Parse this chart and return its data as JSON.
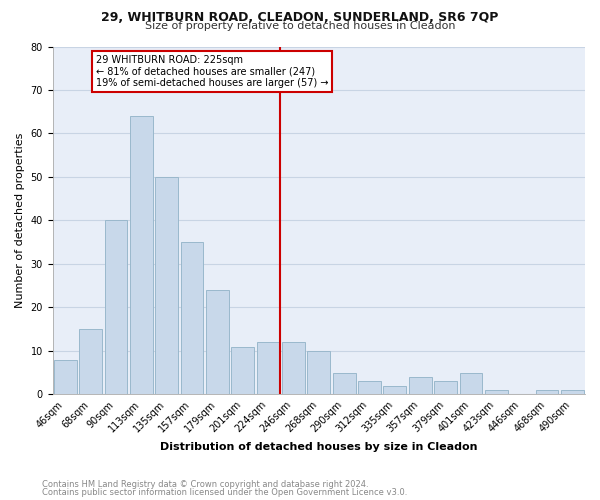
{
  "title1": "29, WHITBURN ROAD, CLEADON, SUNDERLAND, SR6 7QP",
  "title2": "Size of property relative to detached houses in Cleadon",
  "xlabel": "Distribution of detached houses by size in Cleadon",
  "ylabel": "Number of detached properties",
  "footnote1": "Contains HM Land Registry data © Crown copyright and database right 2024.",
  "footnote2": "Contains public sector information licensed under the Open Government Licence v3.0.",
  "bar_labels": [
    "46sqm",
    "68sqm",
    "90sqm",
    "113sqm",
    "135sqm",
    "157sqm",
    "179sqm",
    "201sqm",
    "224sqm",
    "246sqm",
    "268sqm",
    "290sqm",
    "312sqm",
    "335sqm",
    "357sqm",
    "379sqm",
    "401sqm",
    "423sqm",
    "446sqm",
    "468sqm",
    "490sqm"
  ],
  "bar_values": [
    8,
    15,
    40,
    64,
    50,
    35,
    24,
    11,
    12,
    12,
    10,
    5,
    3,
    2,
    4,
    3,
    5,
    1,
    0,
    1,
    1
  ],
  "bar_color": "#c8d8ea",
  "bar_edgecolor": "#9ab8cc",
  "marker_color": "#cc0000",
  "marker_index": 8,
  "annotation_text": "29 WHITBURN ROAD: 225sqm\n← 81% of detached houses are smaller (247)\n19% of semi-detached houses are larger (57) →",
  "annotation_box_color": "#ffffff",
  "annotation_border_color": "#cc0000",
  "ylim": [
    0,
    80
  ],
  "yticks": [
    0,
    10,
    20,
    30,
    40,
    50,
    60,
    70,
    80
  ],
  "grid_color": "#c8d4e4",
  "background_color": "#e8eef8",
  "title_fontsize": 9,
  "subtitle_fontsize": 8,
  "ylabel_fontsize": 8,
  "xlabel_fontsize": 8,
  "tick_fontsize": 7,
  "annotation_fontsize": 7,
  "footnote_fontsize": 6
}
